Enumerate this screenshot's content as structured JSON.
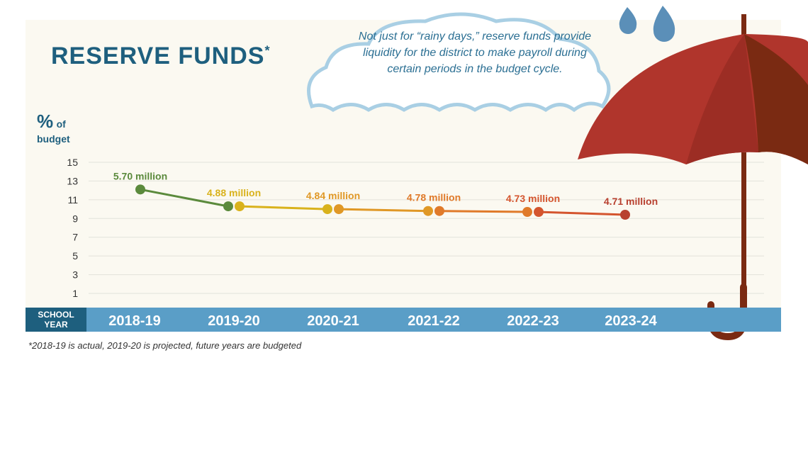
{
  "header": {
    "title": "RESERVE FUNDS",
    "title_mark": "*",
    "cloud_note": "Not just for “rainy days,” reserve funds provide liquidity for the district to make payroll during certain periods in the budget cycle."
  },
  "axis": {
    "ylabel_pct": "%",
    "ylabel_of": "of",
    "ylabel_budget": "budget",
    "xlabel": "SCHOOL YEAR"
  },
  "footnote": "*2018-19 is actual, 2019-20 is projected, future years are budgeted",
  "chart_data": {
    "type": "line",
    "title": "RESERVE FUNDS*",
    "xlabel": "SCHOOL YEAR",
    "ylabel": "% of budget",
    "ylim": [
      0,
      15
    ],
    "yticks": [
      1,
      3,
      5,
      7,
      9,
      11,
      13,
      15
    ],
    "grid": true,
    "categories": [
      "2018-19",
      "2019-20",
      "2020-21",
      "2021-22",
      "2022-23",
      "2023-24"
    ],
    "values": [
      12.1,
      10.3,
      10.0,
      9.8,
      9.7,
      9.4
    ],
    "data_labels": [
      "5.70 million",
      "4.88 million",
      "4.84 million",
      "4.78 million",
      "4.73 million",
      "4.71 million"
    ],
    "colors": [
      "#5b8a3c",
      "#d9b21c",
      "#e09826",
      "#e07a2a",
      "#d4552e",
      "#b8402f"
    ]
  },
  "colors": {
    "title": "#1e5f7e",
    "axis_bar": "#5a9ec7",
    "axis_label_box": "#1e5f7e",
    "cloud_outline": "#a9cfe4",
    "umbrella": "#b0352c",
    "umbrella_dark": "#7a2a12",
    "raindrop": "#5b8fb8"
  },
  "icons": [
    "cloud-icon",
    "umbrella-icon",
    "raindrop-icon"
  ]
}
